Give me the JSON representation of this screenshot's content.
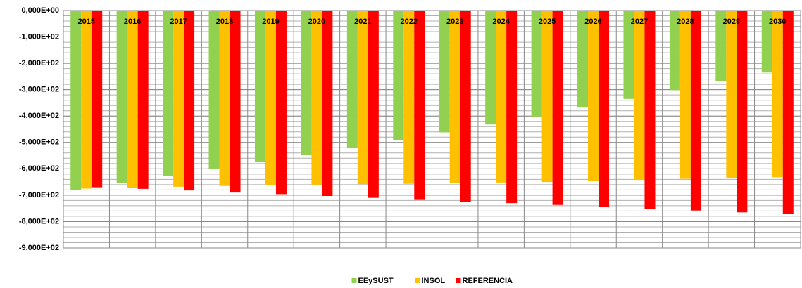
{
  "chart_data": {
    "type": "bar",
    "categories": [
      "2015",
      "2016",
      "2017",
      "2018",
      "2019",
      "2020",
      "2021",
      "2022",
      "2023",
      "2024",
      "2025",
      "2026",
      "2027",
      "2028",
      "2029",
      "2030"
    ],
    "series": [
      {
        "name": "EEySUST",
        "color": "#92d050",
        "values": [
          -680,
          -655,
          -628,
          -600,
          -575,
          -548,
          -520,
          -492,
          -462,
          -432,
          -402,
          -368,
          -335,
          -302,
          -268,
          -235
        ]
      },
      {
        "name": "INSOL",
        "color": "#ffc000",
        "values": [
          -675,
          -672,
          -668,
          -665,
          -663,
          -660,
          -658,
          -657,
          -655,
          -652,
          -650,
          -645,
          -642,
          -638,
          -635,
          -632
        ]
      },
      {
        "name": "REFERENCIA",
        "color": "#ff0000",
        "values": [
          -670,
          -676,
          -682,
          -690,
          -696,
          -703,
          -710,
          -718,
          -725,
          -730,
          -737,
          -745,
          -752,
          -758,
          -765,
          -772
        ]
      }
    ],
    "ylim": [
      -900,
      0
    ],
    "yticks": [
      {
        "value": 0,
        "label": "0,000E+00"
      },
      {
        "value": -100,
        "label": "-1,000E+02"
      },
      {
        "value": -200,
        "label": "-2,000E+02"
      },
      {
        "value": -300,
        "label": "-3,000E+02"
      },
      {
        "value": -400,
        "label": "-4,000E+02"
      },
      {
        "value": -500,
        "label": "-5,000E+02"
      },
      {
        "value": -600,
        "label": "-6,000E+02"
      },
      {
        "value": -700,
        "label": "-7,000E+02"
      },
      {
        "value": -800,
        "label": "-8,000E+02"
      },
      {
        "value": -900,
        "label": "-9,000E+02"
      }
    ],
    "minor_grid_step": 20,
    "grid": true,
    "legend": "bottom"
  }
}
